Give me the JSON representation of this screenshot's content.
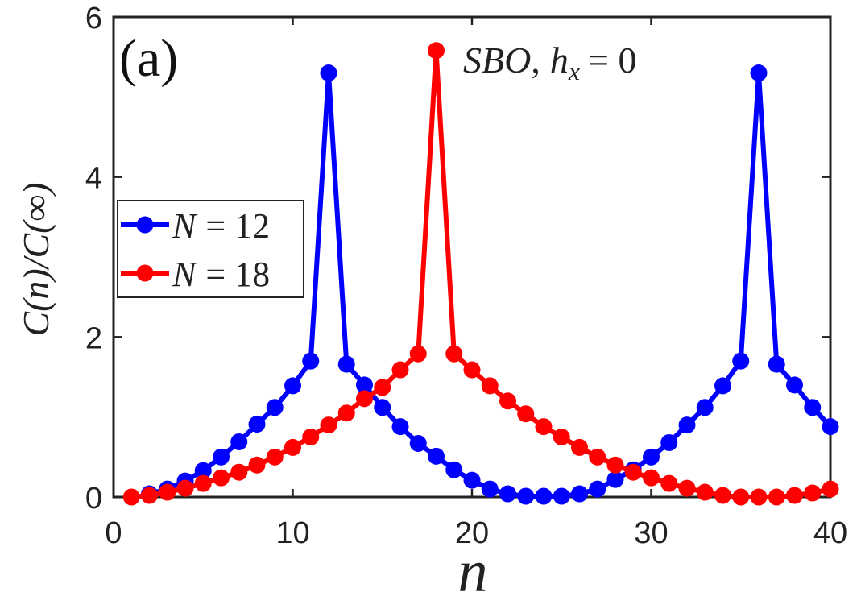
{
  "chart_data": {
    "type": "line",
    "panel_label": "(a)",
    "annotation": "SBO, h_x = 0",
    "annotation_parts": {
      "name": "SBO",
      "sep": ",",
      "lhs": "h",
      "sub": "x",
      "rhs": "= 0"
    },
    "xlabel": "n",
    "ylabel": "C(n)/C(∞)",
    "xlim": [
      0,
      40
    ],
    "ylim": [
      0,
      6
    ],
    "xticks": [
      0,
      10,
      20,
      30,
      40
    ],
    "yticks": [
      0,
      2,
      4,
      6
    ],
    "grid": false,
    "legend_position": "middle-left",
    "series": [
      {
        "name": "N = 12",
        "name_lhs": "N",
        "name_rhs": "= 12",
        "color": "#0000ff",
        "x": [
          2,
          3,
          4,
          5,
          6,
          7,
          8,
          9,
          10,
          11,
          12,
          13,
          14,
          15,
          16,
          17,
          18,
          19,
          20,
          21,
          22,
          23,
          24,
          25,
          26,
          27,
          28,
          29,
          30,
          31,
          32,
          33,
          34,
          35,
          36,
          37,
          38,
          39,
          40
        ],
        "y": [
          0.04,
          0.1,
          0.2,
          0.33,
          0.5,
          0.69,
          0.91,
          1.12,
          1.39,
          1.7,
          5.3,
          1.66,
          1.4,
          1.12,
          0.88,
          0.67,
          0.51,
          0.34,
          0.21,
          0.1,
          0.04,
          0.01,
          0.01,
          0.01,
          0.04,
          0.1,
          0.22,
          0.34,
          0.5,
          0.68,
          0.9,
          1.12,
          1.39,
          1.7,
          5.3,
          1.66,
          1.4,
          1.12,
          0.88
        ]
      },
      {
        "name": "N = 18",
        "name_lhs": "N",
        "name_rhs": "= 18",
        "color": "#ff0000",
        "x": [
          1,
          2,
          3,
          4,
          5,
          6,
          7,
          8,
          9,
          10,
          11,
          12,
          13,
          14,
          15,
          16,
          17,
          18,
          19,
          20,
          21,
          22,
          23,
          24,
          25,
          26,
          27,
          28,
          29,
          30,
          31,
          32,
          33,
          34,
          35,
          36,
          37,
          38,
          39,
          40
        ],
        "y": [
          0.0,
          0.02,
          0.06,
          0.11,
          0.17,
          0.24,
          0.31,
          0.4,
          0.5,
          0.62,
          0.75,
          0.9,
          1.05,
          1.23,
          1.37,
          1.59,
          1.79,
          5.58,
          1.79,
          1.59,
          1.39,
          1.2,
          1.04,
          0.88,
          0.75,
          0.62,
          0.5,
          0.4,
          0.31,
          0.24,
          0.17,
          0.11,
          0.06,
          0.02,
          0.0,
          0.0,
          0.0,
          0.02,
          0.05,
          0.1
        ]
      }
    ]
  }
}
